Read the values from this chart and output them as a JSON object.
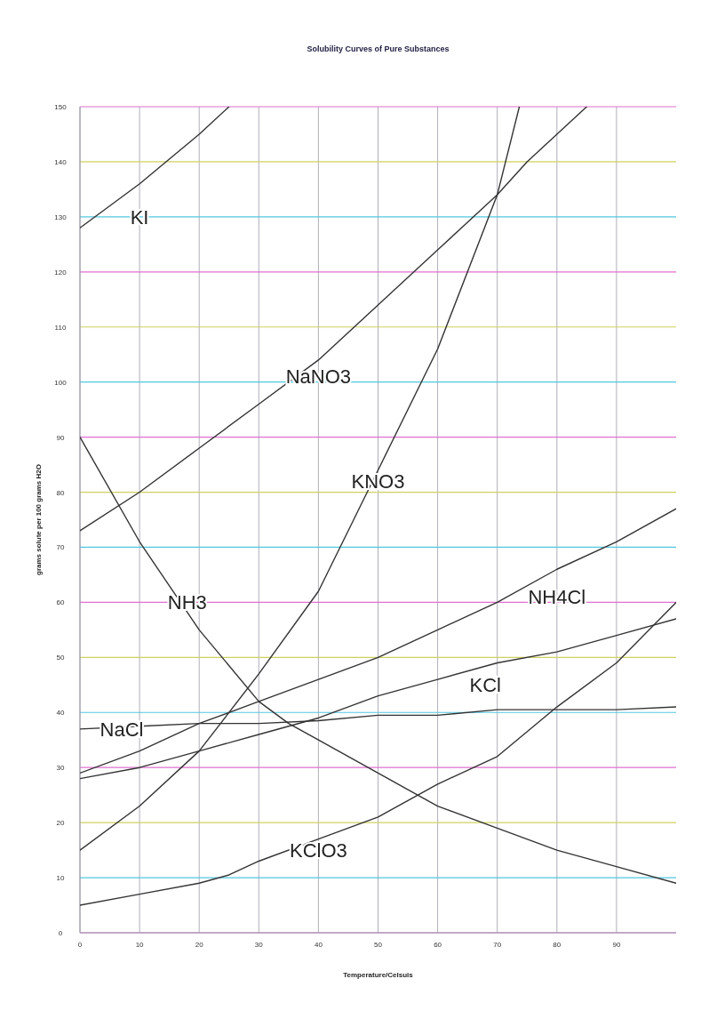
{
  "chart_data": {
    "type": "line",
    "title": "Solubility Curves of Pure Substances",
    "xlabel": "Temperature/Celsuis",
    "ylabel": "grams solute per 100 grams H2O",
    "xlim": [
      0,
      100
    ],
    "xticks": [
      0,
      10,
      20,
      30,
      40,
      50,
      60,
      70,
      80,
      90
    ],
    "ylim": [
      0,
      150
    ],
    "yticks": [
      0,
      10,
      20,
      30,
      40,
      50,
      60,
      70,
      80,
      90,
      100,
      110,
      120,
      130,
      140,
      150
    ],
    "grid": true,
    "marker": "none",
    "line_style": "solid",
    "series": [
      {
        "name": "KI",
        "color": "#333333",
        "x": [
          0,
          10,
          20,
          25
        ],
        "values": [
          128,
          136,
          145,
          150
        ]
      },
      {
        "name": "NaNO3",
        "color": "#333333",
        "x": [
          0,
          10,
          20,
          30,
          40,
          50,
          60,
          70,
          75,
          80,
          85
        ],
        "values": [
          73,
          80,
          88,
          96,
          104,
          114,
          124,
          134,
          140,
          145,
          150
        ]
      },
      {
        "name": "KNO3",
        "color": "#333333",
        "x": [
          0,
          10,
          20,
          30,
          40,
          50,
          60,
          70,
          73.7
        ],
        "values": [
          15,
          23,
          33,
          47,
          62,
          84,
          106,
          134,
          150
        ]
      },
      {
        "name": "NH3",
        "color": "#333333",
        "x": [
          0,
          10,
          20,
          30,
          35,
          40,
          50,
          60,
          70,
          80,
          90,
          100
        ],
        "values": [
          90,
          71,
          55,
          42,
          38,
          35,
          29,
          23,
          19,
          15,
          12,
          9
        ]
      },
      {
        "name": "NH4Cl",
        "color": "#333333",
        "x": [
          0,
          10,
          20,
          30,
          40,
          50,
          60,
          70,
          80,
          90,
          100
        ],
        "values": [
          29,
          33,
          38,
          42,
          46,
          50,
          55,
          60,
          66,
          71,
          77
        ]
      },
      {
        "name": "KCl",
        "color": "#333333",
        "x": [
          0,
          10,
          20,
          30,
          40,
          50,
          60,
          70,
          80,
          90,
          100
        ],
        "values": [
          28,
          30,
          33,
          36,
          39,
          43,
          46,
          49,
          51,
          54,
          57
        ]
      },
      {
        "name": "NaCl",
        "color": "#333333",
        "x": [
          0,
          10,
          20,
          30,
          40,
          50,
          60,
          70,
          80,
          90,
          100
        ],
        "values": [
          37,
          37.5,
          38,
          38,
          38.5,
          39.5,
          39.5,
          40.5,
          40.5,
          40.5,
          41
        ]
      },
      {
        "name": "KClO3",
        "color": "#333333",
        "x": [
          0,
          10,
          20,
          25,
          30,
          40,
          50,
          60,
          70,
          80,
          90,
          100
        ],
        "values": [
          5,
          7,
          9,
          10.5,
          13,
          17,
          21,
          27,
          32,
          41,
          49,
          60
        ]
      }
    ]
  }
}
